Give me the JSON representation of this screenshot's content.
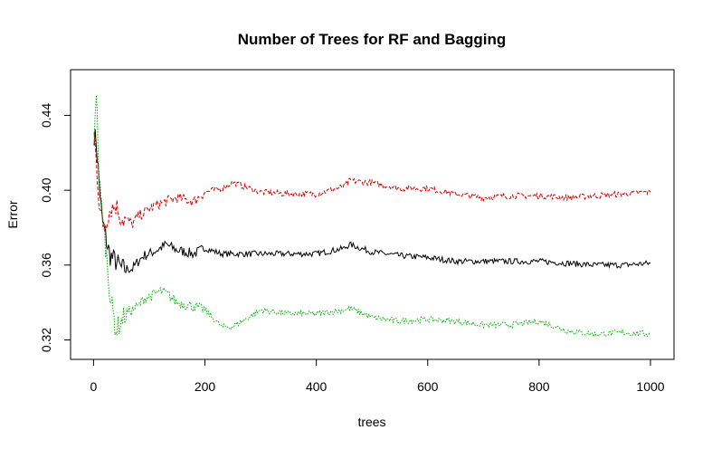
{
  "chart_data": {
    "type": "line",
    "title": "Number of Trees for RF and Bagging",
    "xlabel": "trees",
    "ylabel": "Error",
    "xlim": [
      1,
      1000
    ],
    "ylim": [
      0.313,
      0.461
    ],
    "x_ticks": [
      0,
      200,
      400,
      600,
      800,
      1000
    ],
    "y_ticks": [
      0.32,
      0.36,
      0.4,
      0.44
    ],
    "x_tick_labels": [
      "0",
      "200",
      "400",
      "600",
      "800",
      "1000"
    ],
    "y_tick_labels": [
      "0.32",
      "0.36",
      "0.40",
      "0.44"
    ],
    "grid": false,
    "legend": "none",
    "series": [
      {
        "color": "#000000",
        "dash": "solid",
        "x": [
          1,
          5,
          10,
          15,
          20,
          25,
          30,
          40,
          50,
          60,
          70,
          80,
          90,
          100,
          120,
          130,
          150,
          180,
          200,
          230,
          250,
          300,
          350,
          400,
          450,
          460,
          500,
          550,
          600,
          650,
          700,
          750,
          800,
          850,
          900,
          950,
          1000
        ],
        "y": [
          0.43,
          0.425,
          0.405,
          0.385,
          0.378,
          0.37,
          0.365,
          0.362,
          0.358,
          0.358,
          0.358,
          0.362,
          0.365,
          0.366,
          0.369,
          0.371,
          0.368,
          0.366,
          0.369,
          0.366,
          0.366,
          0.366,
          0.366,
          0.366,
          0.369,
          0.371,
          0.367,
          0.365,
          0.364,
          0.362,
          0.362,
          0.362,
          0.362,
          0.361,
          0.36,
          0.36,
          0.361
        ]
      },
      {
        "color": "#d00000",
        "dash": "dashed",
        "x": [
          1,
          5,
          10,
          15,
          20,
          25,
          30,
          40,
          50,
          60,
          70,
          80,
          90,
          100,
          120,
          150,
          180,
          200,
          230,
          250,
          300,
          350,
          400,
          450,
          460,
          500,
          550,
          600,
          650,
          700,
          750,
          800,
          850,
          900,
          950,
          1000
        ],
        "y": [
          0.43,
          0.415,
          0.395,
          0.384,
          0.38,
          0.386,
          0.39,
          0.392,
          0.385,
          0.384,
          0.382,
          0.386,
          0.388,
          0.39,
          0.393,
          0.396,
          0.394,
          0.399,
          0.401,
          0.404,
          0.399,
          0.398,
          0.398,
          0.402,
          0.405,
          0.404,
          0.401,
          0.401,
          0.398,
          0.396,
          0.397,
          0.397,
          0.396,
          0.397,
          0.398,
          0.399
        ]
      },
      {
        "color": "#00b000",
        "dash": "dotted",
        "x": [
          1,
          5,
          10,
          15,
          20,
          25,
          30,
          35,
          40,
          50,
          60,
          70,
          80,
          90,
          100,
          120,
          130,
          150,
          180,
          200,
          230,
          250,
          300,
          350,
          400,
          450,
          460,
          500,
          550,
          600,
          650,
          700,
          750,
          800,
          850,
          900,
          950,
          1000
        ],
        "y": [
          0.43,
          0.455,
          0.405,
          0.39,
          0.375,
          0.36,
          0.343,
          0.335,
          0.325,
          0.33,
          0.335,
          0.336,
          0.338,
          0.342,
          0.343,
          0.346,
          0.345,
          0.34,
          0.338,
          0.336,
          0.327,
          0.327,
          0.336,
          0.334,
          0.334,
          0.336,
          0.337,
          0.332,
          0.33,
          0.331,
          0.33,
          0.328,
          0.328,
          0.33,
          0.325,
          0.323,
          0.324,
          0.323
        ]
      }
    ]
  }
}
